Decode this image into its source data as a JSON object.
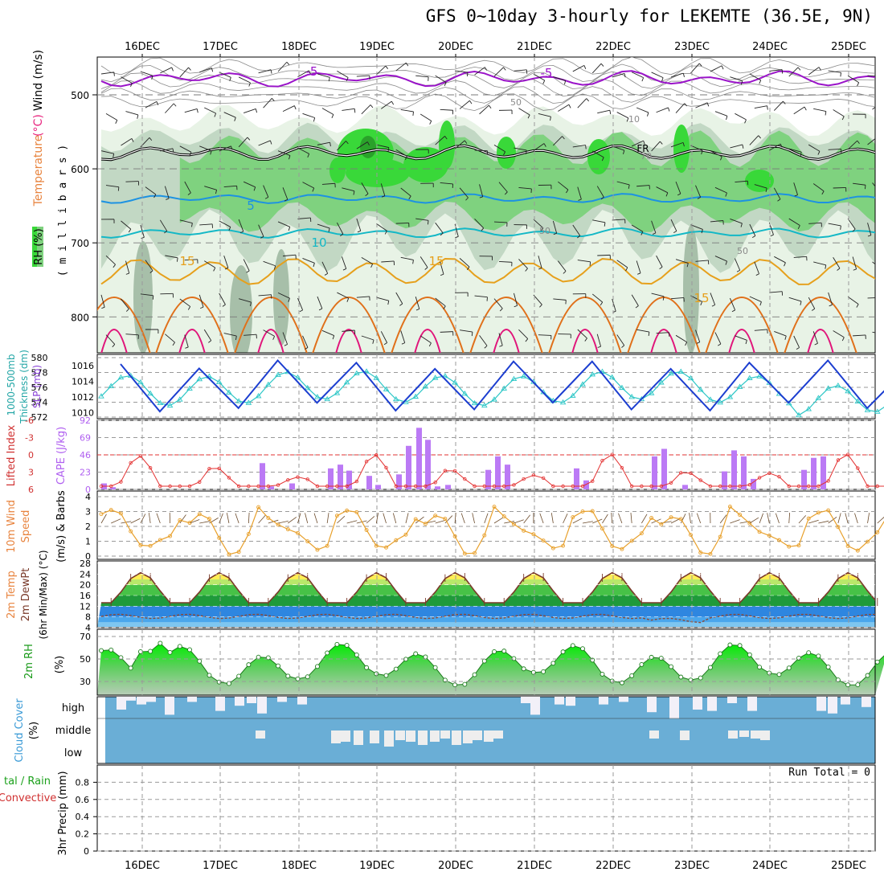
{
  "title": "GFS 0~10day 3-hourly for LEKEMTE (36.5E, 9N)",
  "dates": [
    "16DEC",
    "17DEC",
    "18DEC",
    "19DEC",
    "20DEC",
    "21DEC",
    "22DEC",
    "23DEC",
    "24DEC",
    "25DEC"
  ],
  "colors": {
    "rh_light": "#e8f3e6",
    "rh_mid": "#c2d8c4",
    "rh_dark": "#a7bfa9",
    "rh_green": "#7fd27f",
    "rh_bright": "#39d839",
    "rh_max": "#00ee00",
    "temp_minus5": "#9a13c9",
    "temp_freeze": "#000000",
    "temp_5": "#1d92e2",
    "temp_10": "#14b8c6",
    "temp_15": "#e6a01c",
    "temp_20": "#e0701a",
    "temp_25": "#e0157a",
    "slp": "#1c3ed0",
    "thickness": "#2ec7c7",
    "cape": "#bb7af5",
    "lifted": "#e33030",
    "wind": "#e8a02b",
    "cloud": "#6aaed6"
  },
  "labels": {
    "p1_left_rh": "RH (%)",
    "p1_left_temp_a": "Temperature",
    "p1_left_temp_b": " (°C)",
    "p1_left_wind": "Wind (m/s)",
    "p1_left_mb": "( m i l l i b a r s )",
    "p2_left_a": "1000-500mb",
    "p2_left_b": "Thickness (dm)",
    "p2_left_c": "SLP (mb)",
    "p3_left_a": "Lifted Index",
    "p3_left_b": "CAPE (J/kg)",
    "p4_left_a": "10m Wind",
    "p4_left_b": "Speed",
    "p4_left_c": "(m/s) & Barbs",
    "p5_left_a": "2m Temp",
    "p5_left_b": "2m DewPt",
    "p5_left_c": "(6hr Min/Max) (°C)",
    "p6_left_a": "2m RH",
    "p6_left_b": "(%)",
    "p7_left_a": "Cloud Cover",
    "p7_left_b": "(%)",
    "p8_left_a": "tal / Rain",
    "p8_left_b": "Convective",
    "p8_left_c": "3hr Precip (mm)",
    "run_total": "Run Total = 0"
  },
  "chart_data": [
    {
      "type": "heatmap",
      "title": "GFS 0~10day 3-hourly for LEKEMTE (36.5E, 9N)",
      "ylabel": "millibars",
      "yticks": [
        500,
        600,
        700,
        800
      ],
      "ylim": [
        450,
        850
      ],
      "layers": [
        "RH (%) shading",
        "Temperature (°C) contours",
        "Wind (m/s) barbs"
      ],
      "contour_labels": [
        "-5",
        "-5",
        "FR",
        "5",
        "10",
        "15",
        "15",
        "15",
        "50",
        "50",
        "50",
        "70",
        "10"
      ]
    },
    {
      "type": "line",
      "series": [
        {
          "name": "Thickness (dm)",
          "yticks": [
            572,
            574,
            576,
            578,
            580
          ]
        },
        {
          "name": "SLP (mb)",
          "yticks": [
            1010,
            1012,
            1014,
            1016
          ]
        }
      ],
      "x": [
        "16DEC",
        "17DEC",
        "18DEC",
        "19DEC",
        "20DEC",
        "21DEC",
        "22DEC",
        "23DEC",
        "24DEC",
        "25DEC"
      ]
    },
    {
      "type": "bar",
      "series": [
        {
          "name": "CAPE (J/kg)",
          "yticks": [
            0,
            23,
            46,
            69,
            92
          ]
        },
        {
          "name": "Lifted Index",
          "yticks": [
            -6,
            -3,
            0,
            3,
            6
          ]
        }
      ],
      "cape_yticks_labels": [
        "0",
        "23",
        "46",
        "69",
        "92"
      ],
      "li_yticks_labels": [
        "6",
        "3",
        "0",
        "-3",
        "-6"
      ]
    },
    {
      "type": "line",
      "series": [
        {
          "name": "10m Wind Speed (m/s)"
        }
      ],
      "yticks": [
        0,
        1,
        2,
        3,
        4
      ]
    },
    {
      "type": "area",
      "series": [
        {
          "name": "2m Temp"
        },
        {
          "name": "2m DewPt"
        }
      ],
      "yticks": [
        4,
        8,
        12,
        16,
        20,
        24,
        28
      ]
    },
    {
      "type": "area",
      "series": [
        {
          "name": "2m RH"
        }
      ],
      "yticks": [
        30,
        50,
        70
      ]
    },
    {
      "type": "bar",
      "series": [
        {
          "name": "Cloud Cover"
        }
      ],
      "yticks_labels": [
        "high",
        "middle",
        "low"
      ]
    },
    {
      "type": "bar",
      "series": [
        {
          "name": "3hr Precip (mm)"
        }
      ],
      "yticks": [
        0,
        0.2,
        0.4,
        0.6,
        0.8
      ],
      "ylim": [
        0,
        1
      ],
      "run_total": "Run Total = 0"
    }
  ]
}
